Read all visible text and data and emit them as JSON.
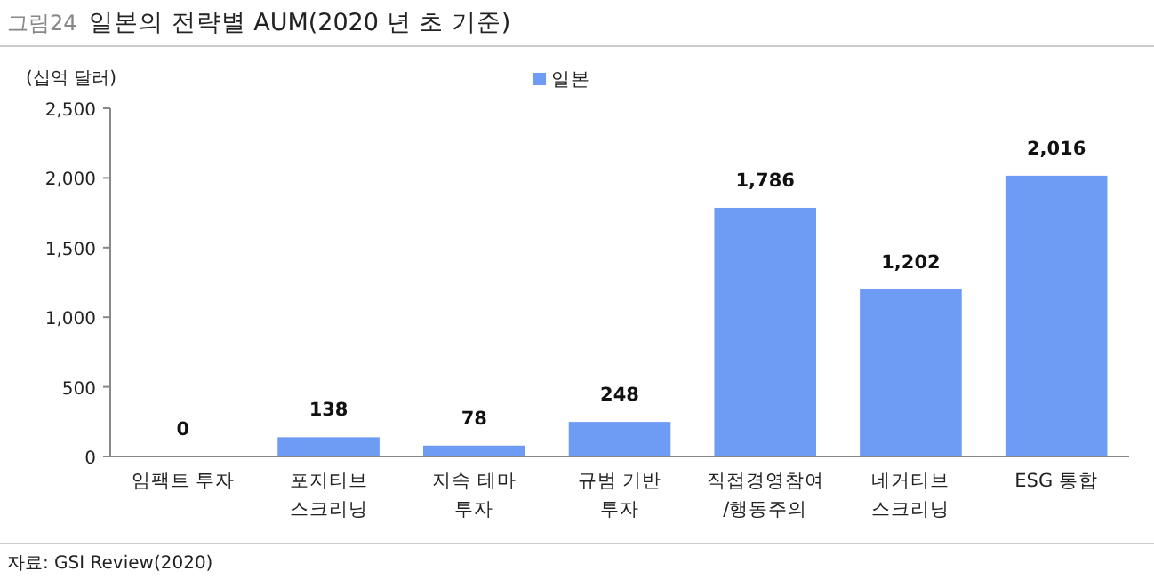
{
  "chart_data": {
    "type": "bar",
    "title": "일본의 전략별 AUM(2020 년 초 기준)",
    "ylabel": "(십억 달러)",
    "categories": [
      "임팩트 투자",
      "포지티브\n스크리닝",
      "지속 테마\n투자",
      "규범 기반\n투자",
      "직접경영참여\n/행동주의",
      "네거티브\n스크리닝",
      "ESG 통합"
    ],
    "series": [
      {
        "name": "일본",
        "color": "#6e9cf5",
        "values": [
          0,
          138,
          78,
          248,
          1786,
          1202,
          2016
        ],
        "value_labels": [
          "0",
          "138",
          "78",
          "248",
          "1,786",
          "1,202",
          "2,016"
        ]
      }
    ],
    "ylim": [
      0,
      2500
    ],
    "yticks": [
      {
        "value": 0,
        "label": "0"
      },
      {
        "value": 500,
        "label": "500"
      },
      {
        "value": 1000,
        "label": "1,000"
      },
      {
        "value": 1500,
        "label": "1,500"
      },
      {
        "value": 2000,
        "label": "2,000"
      },
      {
        "value": 2500,
        "label": "2,500"
      }
    ],
    "legend": "top",
    "annotations": [
      "그림24",
      "자료: GSI Review(2020)"
    ]
  }
}
